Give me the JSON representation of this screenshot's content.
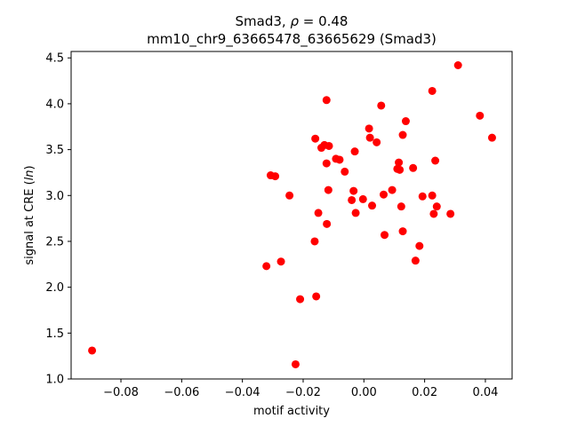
{
  "chart_data": {
    "type": "scatter",
    "title_line1_prefix": "Smad3, ",
    "title_line1_rho": "ρ",
    "title_line1_suffix": " = 0.48",
    "title_line2": "mm10_chr9_63665478_63665629 (Smad3)",
    "xlabel": "motif activity",
    "ylabel_prefix": "signal at CRE (",
    "ylabel_italic": "ln",
    "ylabel_suffix": ")",
    "xlim": [
      -0.0964,
      0.0488
    ],
    "ylim": [
      1.0,
      4.57
    ],
    "xticks": [
      -0.08,
      -0.06,
      -0.04,
      -0.02,
      0.0,
      0.02,
      0.04
    ],
    "xtick_labels": [
      "−0.08",
      "−0.06",
      "−0.04",
      "−0.02",
      "0.00",
      "0.02",
      "0.04"
    ],
    "yticks": [
      1.0,
      1.5,
      2.0,
      2.5,
      3.0,
      3.5,
      4.0,
      4.5
    ],
    "ytick_labels": [
      "1.0",
      "1.5",
      "2.0",
      "2.5",
      "3.0",
      "3.5",
      "4.0",
      "4.5"
    ],
    "marker_color": "#ff0000",
    "points": [
      {
        "x": -0.0895,
        "y": 1.31
      },
      {
        "x": -0.0321,
        "y": 2.23
      },
      {
        "x": -0.0307,
        "y": 3.22
      },
      {
        "x": -0.0292,
        "y": 3.21
      },
      {
        "x": -0.0273,
        "y": 2.28
      },
      {
        "x": -0.0245,
        "y": 3.0
      },
      {
        "x": -0.0225,
        "y": 1.16
      },
      {
        "x": -0.021,
        "y": 1.87
      },
      {
        "x": -0.0162,
        "y": 2.5
      },
      {
        "x": -0.016,
        "y": 3.62
      },
      {
        "x": -0.0157,
        "y": 1.9
      },
      {
        "x": -0.015,
        "y": 2.81
      },
      {
        "x": -0.014,
        "y": 3.52
      },
      {
        "x": -0.013,
        "y": 3.55
      },
      {
        "x": -0.0123,
        "y": 4.04
      },
      {
        "x": -0.0123,
        "y": 3.35
      },
      {
        "x": -0.0122,
        "y": 2.69
      },
      {
        "x": -0.0117,
        "y": 3.06
      },
      {
        "x": -0.0115,
        "y": 3.54
      },
      {
        "x": -0.0092,
        "y": 3.4
      },
      {
        "x": -0.008,
        "y": 3.39
      },
      {
        "x": -0.0063,
        "y": 3.26
      },
      {
        "x": -0.004,
        "y": 2.95
      },
      {
        "x": -0.0034,
        "y": 3.05
      },
      {
        "x": -0.003,
        "y": 3.48
      },
      {
        "x": -0.0027,
        "y": 2.81
      },
      {
        "x": -0.0003,
        "y": 2.96
      },
      {
        "x": 0.0017,
        "y": 3.73
      },
      {
        "x": 0.002,
        "y": 3.63
      },
      {
        "x": 0.0027,
        "y": 2.89
      },
      {
        "x": 0.0042,
        "y": 3.58
      },
      {
        "x": 0.0057,
        "y": 3.98
      },
      {
        "x": 0.0065,
        "y": 3.01
      },
      {
        "x": 0.0068,
        "y": 2.57
      },
      {
        "x": 0.0093,
        "y": 3.06
      },
      {
        "x": 0.011,
        "y": 3.29
      },
      {
        "x": 0.0115,
        "y": 3.36
      },
      {
        "x": 0.0118,
        "y": 3.28
      },
      {
        "x": 0.0123,
        "y": 2.88
      },
      {
        "x": 0.0128,
        "y": 3.66
      },
      {
        "x": 0.0128,
        "y": 2.61
      },
      {
        "x": 0.0138,
        "y": 3.81
      },
      {
        "x": 0.0162,
        "y": 3.3
      },
      {
        "x": 0.017,
        "y": 2.29
      },
      {
        "x": 0.0183,
        "y": 2.45
      },
      {
        "x": 0.0193,
        "y": 2.99
      },
      {
        "x": 0.0225,
        "y": 4.14
      },
      {
        "x": 0.0225,
        "y": 3.0
      },
      {
        "x": 0.023,
        "y": 2.8
      },
      {
        "x": 0.0235,
        "y": 3.38
      },
      {
        "x": 0.024,
        "y": 2.88
      },
      {
        "x": 0.0285,
        "y": 2.8
      },
      {
        "x": 0.031,
        "y": 4.42
      },
      {
        "x": 0.0382,
        "y": 3.87
      },
      {
        "x": 0.0422,
        "y": 3.63
      }
    ]
  }
}
